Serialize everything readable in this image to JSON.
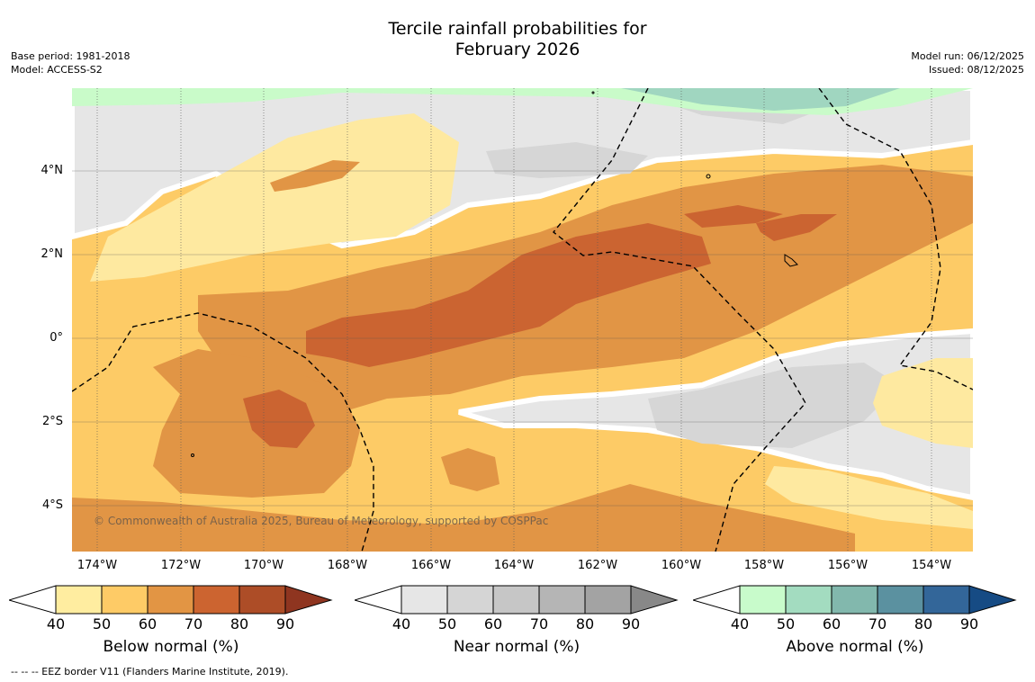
{
  "title": {
    "line1": "Tercile rainfall probabilities for",
    "line2": "February 2026"
  },
  "meta_left": {
    "base_period": "Base period: 1981-2018",
    "model": "Model: ACCESS-S2"
  },
  "meta_right": {
    "model_run": "Model run: 06/12/2025",
    "issued": "Issued: 08/12/2025"
  },
  "map": {
    "lat_labels": [
      "4°N",
      "2°N",
      "0°",
      "2°S",
      "4°S"
    ],
    "lon_labels": [
      "174°W",
      "172°W",
      "170°W",
      "168°W",
      "166°W",
      "164°W",
      "162°W",
      "160°W",
      "158°W",
      "156°W",
      "154°W"
    ],
    "credit": "© Commonwealth of Australia 2025, Bureau of Meteorology, supported by COSPPac",
    "colors": {
      "near": "#e6e6e6",
      "near2": "#d6d6d6",
      "b50": "#fee9a0",
      "b60": "#fdcb66",
      "b70": "#e19545",
      "b80": "#cb6431",
      "a50": "#c9fbc9",
      "a60": "#a0d6c0"
    }
  },
  "colorbars": [
    {
      "title": "Below normal (%)",
      "ticks": [
        "40",
        "50",
        "60",
        "70",
        "80",
        "90"
      ],
      "colors": [
        "#ffffff",
        "#ffeda0",
        "#fecb66",
        "#e29544",
        "#cc6430",
        "#ad4d27",
        "#8f3520"
      ]
    },
    {
      "title": "Near normal (%)",
      "ticks": [
        "40",
        "50",
        "60",
        "70",
        "80",
        "90"
      ],
      "colors": [
        "#ffffff",
        "#e6e6e6",
        "#d5d5d5",
        "#c6c6c6",
        "#b5b5b5",
        "#a3a3a3",
        "#888888"
      ]
    },
    {
      "title": "Above normal (%)",
      "ticks": [
        "40",
        "50",
        "60",
        "70",
        "80",
        "90"
      ],
      "colors": [
        "#ffffff",
        "#c8fbcb",
        "#a3dcc0",
        "#82b8ad",
        "#5b91a0",
        "#336699",
        "#164b84"
      ]
    }
  ],
  "footer": "--  --  -- EEZ border V11 (Flanders Marine Institute, 2019)."
}
